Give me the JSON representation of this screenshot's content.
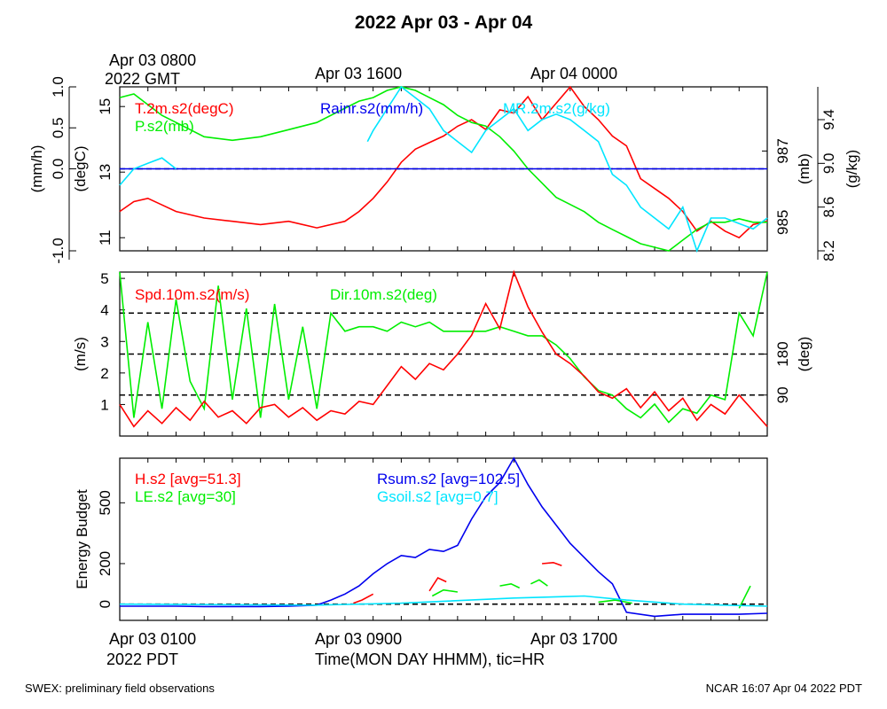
{
  "title": "2022 Apr 03 - Apr 04",
  "top_axis": {
    "labels": [
      "Apr 03 0800",
      "Apr 03 1600",
      "Apr 04 0000"
    ],
    "sublabel": "2022 GMT"
  },
  "bottom_axis": {
    "labels": [
      "Apr 03 0100",
      "Apr 03 0900",
      "Apr 03 1700"
    ],
    "sublabel": "2022 PDT",
    "xlabel": "Time(MON DAY HHMM), tic=HR"
  },
  "footer": {
    "left": "SWEX: preliminary field observations",
    "right": "NCAR 16:07 Apr 04 2022 PDT"
  },
  "colors": {
    "red": "#ff0000",
    "green": "#00ee00",
    "blue": "#0000ee",
    "cyan": "#00e5ff",
    "black": "#000000"
  },
  "chart_data": [
    {
      "type": "line",
      "panel": "state",
      "x_range_hours": [
        0,
        23
      ],
      "x_label_hours": [
        0,
        8,
        16
      ],
      "axes": {
        "rain": {
          "label": "(mm/h)",
          "range": [
            -1.0,
            1.0
          ],
          "ticks": [
            "-1.0",
            "0.0",
            "0.5",
            "1.0"
          ],
          "tick_values": [
            -1.0,
            0.0,
            0.5,
            1.0
          ]
        },
        "temp": {
          "label": "(degC)",
          "range": [
            10.6,
            15.6
          ],
          "ticks": [
            "11",
            "13",
            "15"
          ],
          "tick_values": [
            11,
            13,
            15
          ]
        },
        "pres": {
          "label": "(mb)",
          "range": [
            984.2,
            988.8
          ],
          "ticks": [
            "985",
            "987"
          ],
          "tick_values": [
            985,
            987
          ]
        },
        "mr": {
          "label": "(g/kg)",
          "range": [
            8.2,
            9.7
          ],
          "ticks": [
            "8.2",
            "8.6",
            "9.0",
            "9.4"
          ],
          "tick_values": [
            8.2,
            8.6,
            9.0,
            9.4
          ]
        }
      },
      "series": [
        {
          "name": "T.2m.s2(degC)",
          "color": "red",
          "axis": "temp",
          "x": [
            0,
            0.5,
            1,
            1.5,
            2,
            3,
            4,
            5,
            6,
            7,
            8,
            8.5,
            9,
            9.5,
            10,
            10.5,
            11,
            11.5,
            12,
            12.5,
            13,
            13.5,
            14,
            14.5,
            15,
            15.5,
            16,
            16.5,
            17,
            17.5,
            18,
            18.5,
            19,
            19.5,
            20,
            20.5,
            21,
            21.5,
            22,
            22.5,
            23
          ],
          "values": [
            11.8,
            12.1,
            12.2,
            12.0,
            11.8,
            11.6,
            11.5,
            11.4,
            11.5,
            11.3,
            11.5,
            11.8,
            12.2,
            12.7,
            13.3,
            13.7,
            13.9,
            14.1,
            14.4,
            14.6,
            14.3,
            14.9,
            14.8,
            15.3,
            14.6,
            15.1,
            15.6,
            15.0,
            14.6,
            14.1,
            13.8,
            12.8,
            12.5,
            12.2,
            11.8,
            11.2,
            11.5,
            11.2,
            11.0,
            11.4,
            11.5
          ]
        },
        {
          "name": "P.s2(mb)",
          "color": "green",
          "axis": "pres",
          "x": [
            0,
            0.5,
            1,
            1.5,
            2,
            3,
            4,
            5,
            6,
            7,
            8,
            8.5,
            9,
            9.5,
            10,
            10.5,
            11,
            11.5,
            12,
            12.5,
            13,
            13.5,
            14,
            14.5,
            15,
            15.5,
            16,
            16.5,
            17,
            17.5,
            18,
            18.5,
            19,
            19.5,
            20,
            20.5,
            21,
            21.5,
            22,
            22.5,
            23
          ],
          "values": [
            988.5,
            988.6,
            988.3,
            988.0,
            987.8,
            987.4,
            987.3,
            987.4,
            987.6,
            987.8,
            988.2,
            988.4,
            988.5,
            988.7,
            988.8,
            988.7,
            988.5,
            988.3,
            988.0,
            987.8,
            987.7,
            987.4,
            987.0,
            986.5,
            986.1,
            985.7,
            985.5,
            985.3,
            985.0,
            984.8,
            984.6,
            984.4,
            984.3,
            984.2,
            984.5,
            984.8,
            985.0,
            985.0,
            985.1,
            985.0,
            985.0
          ]
        },
        {
          "name": "Rainr.s2(mm/h)",
          "color": "blue",
          "axis": "rain",
          "x": [
            0,
            23
          ],
          "values": [
            0.0,
            0.0
          ]
        },
        {
          "name": "MR.2m.s2(g/kg)",
          "color": "cyan",
          "axis": "mr",
          "x": [
            0,
            0.5,
            1,
            1.5,
            2,
            8.8,
            9,
            9.5,
            10,
            10.5,
            11,
            11.5,
            12,
            12.5,
            13,
            13.5,
            14,
            14.5,
            15,
            15.5,
            16,
            16.5,
            17,
            17.5,
            18,
            18.5,
            19,
            19.5,
            20,
            20.5,
            21,
            21.5,
            22,
            22.5,
            23
          ],
          "values": [
            8.8,
            8.95,
            9.0,
            9.05,
            8.95,
            9.2,
            9.3,
            9.5,
            9.7,
            9.6,
            9.5,
            9.3,
            9.2,
            9.1,
            9.3,
            9.4,
            9.5,
            9.3,
            9.4,
            9.45,
            9.4,
            9.3,
            9.2,
            8.9,
            8.8,
            8.6,
            8.5,
            8.4,
            8.6,
            8.2,
            8.5,
            8.5,
            8.45,
            8.4,
            8.5
          ]
        }
      ]
    },
    {
      "type": "line",
      "panel": "wind",
      "x_range_hours": [
        0,
        23
      ],
      "axes": {
        "spd": {
          "label": "(m/s)",
          "range": [
            0,
            5.2
          ],
          "ticks": [
            "1",
            "2",
            "3",
            "4",
            "5"
          ],
          "tick_values": [
            1,
            2,
            3,
            4,
            5
          ]
        },
        "dir": {
          "label": "(deg)",
          "range": [
            0,
            360
          ],
          "ticks": [
            "90",
            "180"
          ],
          "tick_values": [
            90,
            180
          ]
        }
      },
      "reference_lines_deg": [
        90,
        180,
        270
      ],
      "series": [
        {
          "name": "Spd.10m.s2(m/s)",
          "color": "red",
          "axis": "spd",
          "x": [
            0,
            0.5,
            1,
            1.5,
            2,
            2.5,
            3,
            3.5,
            4,
            4.5,
            5,
            5.5,
            6,
            6.5,
            7,
            7.5,
            8,
            8.5,
            9,
            9.5,
            10,
            10.5,
            11,
            11.5,
            12,
            12.5,
            13,
            13.5,
            14,
            14.5,
            15,
            15.5,
            16,
            16.5,
            17,
            17.5,
            18,
            18.5,
            19,
            19.5,
            20,
            20.5,
            21,
            21.5,
            22,
            22.5,
            23
          ],
          "values": [
            1.0,
            0.3,
            0.8,
            0.4,
            0.9,
            0.5,
            1.1,
            0.6,
            0.8,
            0.4,
            0.9,
            1.0,
            0.6,
            0.9,
            0.5,
            0.8,
            0.7,
            1.1,
            1.0,
            1.6,
            2.2,
            1.8,
            2.3,
            2.1,
            2.6,
            3.2,
            4.2,
            3.4,
            5.2,
            4.1,
            3.3,
            2.6,
            2.3,
            1.9,
            1.4,
            1.2,
            1.5,
            0.9,
            1.4,
            0.8,
            1.2,
            0.5,
            1.0,
            0.7,
            1.3,
            0.8,
            0.3
          ]
        },
        {
          "name": "Dir.10m.s2(deg)",
          "color": "green",
          "axis": "dir",
          "x": [
            0,
            0.5,
            1,
            1.5,
            2,
            2.5,
            3,
            3.5,
            4,
            4.5,
            5,
            5.5,
            6,
            6.5,
            7,
            7.5,
            8,
            8.5,
            9,
            9.5,
            10,
            10.5,
            11,
            11.5,
            12,
            12.5,
            13,
            13.5,
            14,
            14.5,
            15,
            15.5,
            16,
            16.5,
            17,
            17.5,
            18,
            18.5,
            19,
            19.5,
            20,
            20.5,
            21,
            21.5,
            22,
            22.5,
            23
          ],
          "values": [
            360,
            40,
            250,
            60,
            300,
            120,
            60,
            330,
            80,
            280,
            40,
            290,
            80,
            240,
            60,
            270,
            230,
            240,
            240,
            230,
            250,
            240,
            250,
            230,
            230,
            230,
            230,
            240,
            230,
            220,
            220,
            200,
            170,
            130,
            100,
            90,
            60,
            40,
            70,
            30,
            60,
            50,
            90,
            80,
            270,
            220,
            360
          ]
        }
      ]
    },
    {
      "type": "line",
      "panel": "energy",
      "x_range_hours": [
        0,
        23
      ],
      "axes": {
        "y": {
          "label": "Energy Budget",
          "range": [
            -80,
            720
          ],
          "ticks": [
            "0",
            "200",
            "500"
          ],
          "tick_values": [
            0,
            200,
            500
          ]
        }
      },
      "series": [
        {
          "name": "H.s2 [avg=51.3]",
          "color": "red",
          "segments": [
            {
              "x": [
                8.3,
                8.6,
                9.0
              ],
              "values": [
                5,
                20,
                50
              ]
            },
            {
              "x": [
                11.0,
                11.3,
                11.6
              ],
              "values": [
                65,
                130,
                110
              ]
            },
            {
              "x": [
                15.0,
                15.4,
                15.7
              ],
              "values": [
                200,
                205,
                190
              ]
            }
          ]
        },
        {
          "name": "LE.s2 [avg=30]",
          "color": "green",
          "segments": [
            {
              "x": [
                11.1,
                11.5,
                12.0
              ],
              "values": [
                40,
                70,
                60
              ]
            },
            {
              "x": [
                13.5,
                13.9,
                14.2
              ],
              "values": [
                90,
                100,
                80
              ]
            },
            {
              "x": [
                14.6,
                14.9,
                15.2
              ],
              "values": [
                100,
                120,
                90
              ]
            },
            {
              "x": [
                17.0,
                17.6,
                18.2
              ],
              "values": [
                10,
                20,
                5
              ]
            },
            {
              "x": [
                22.0,
                22.4
              ],
              "values": [
                -20,
                90
              ]
            }
          ]
        },
        {
          "name": "Rsum.s2 [avg=102.5]",
          "color": "blue",
          "x": [
            0,
            1,
            2,
            3,
            4,
            5,
            6,
            7,
            7.5,
            8,
            8.5,
            9,
            9.5,
            10,
            10.5,
            11,
            11.5,
            12,
            12.5,
            13,
            13.5,
            14,
            14.5,
            15,
            15.5,
            16,
            16.5,
            17,
            17.5,
            18,
            19,
            20,
            21,
            22,
            23
          ],
          "values": [
            -10,
            -10,
            -10,
            -12,
            -12,
            -12,
            -10,
            -5,
            20,
            50,
            90,
            150,
            200,
            240,
            230,
            270,
            260,
            290,
            420,
            530,
            600,
            720,
            590,
            480,
            390,
            300,
            230,
            160,
            100,
            -40,
            -60,
            -50,
            -50,
            -50,
            -45
          ]
        },
        {
          "name": "Gsoil.s2 [avg=0.7]",
          "color": "cyan",
          "x": [
            0,
            7,
            10,
            14,
            16.5,
            18,
            20,
            23
          ],
          "values": [
            0,
            -5,
            5,
            30,
            40,
            20,
            0,
            -10
          ]
        }
      ]
    }
  ]
}
